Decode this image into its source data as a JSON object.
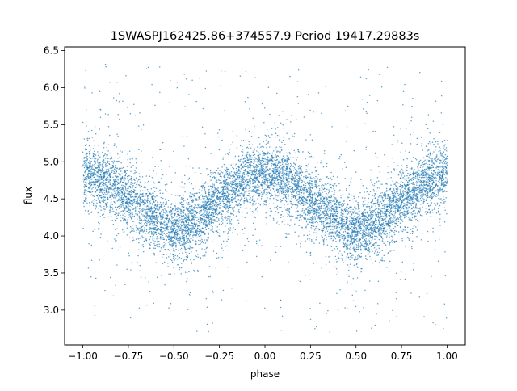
{
  "chart_data": {
    "type": "scatter",
    "title": "1SWASPJ162425.86+374557.9 Period 19417.29883s",
    "xlabel": "phase",
    "ylabel": "flux",
    "xlim": [
      -1.1,
      1.1
    ],
    "ylim": [
      2.53,
      6.55
    ],
    "xticks": [
      -1.0,
      -0.75,
      -0.5,
      -0.25,
      0.0,
      0.25,
      0.5,
      0.75,
      1.0
    ],
    "xtick_labels": [
      "−1.00",
      "−0.75",
      "−0.50",
      "−0.25",
      "0.00",
      "0.25",
      "0.50",
      "0.75",
      "1.00"
    ],
    "yticks": [
      3.0,
      3.5,
      4.0,
      4.5,
      5.0,
      5.5,
      6.0,
      6.5
    ],
    "ytick_labels": [
      "3.0",
      "3.5",
      "4.0",
      "4.5",
      "5.0",
      "5.5",
      "6.0",
      "6.5"
    ],
    "grid": false,
    "series": [
      {
        "color": "#1f77b4",
        "marker_alpha": 0.7,
        "points_approx": 60000,
        "phase_range": [
          -1.0,
          1.0
        ],
        "trend": {
          "x": [
            -1.0,
            -0.875,
            -0.75,
            -0.625,
            -0.5,
            -0.375,
            -0.25,
            -0.125,
            0.0,
            0.125,
            0.25,
            0.375,
            0.5,
            0.625,
            0.75,
            0.875,
            1.0
          ],
          "y": [
            4.85,
            4.74,
            4.52,
            4.28,
            4.07,
            4.2,
            4.48,
            4.75,
            4.86,
            4.74,
            4.5,
            4.26,
            4.03,
            4.2,
            4.48,
            4.73,
            4.85
          ]
        },
        "core_scatter_sd": 0.2,
        "outlier_range": [
          2.7,
          6.35
        ]
      }
    ]
  }
}
